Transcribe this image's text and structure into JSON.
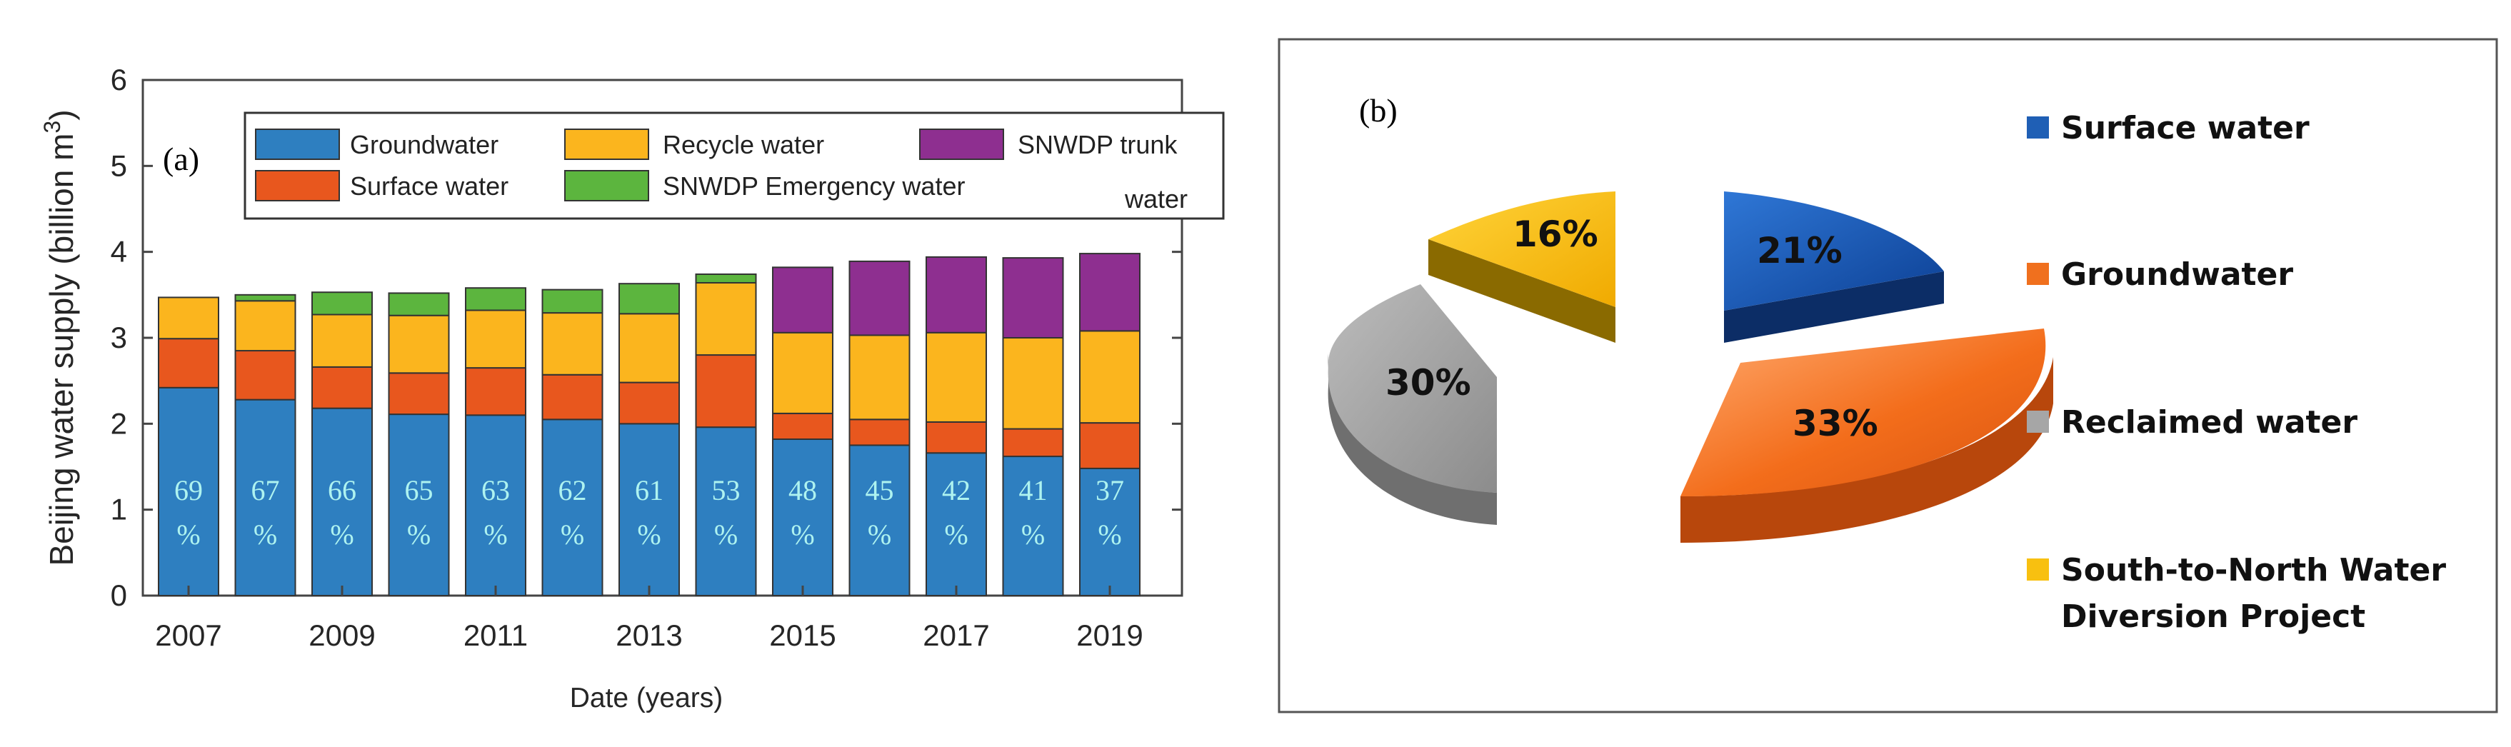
{
  "chart_data": [
    {
      "type": "bar",
      "panel_label": "(a)",
      "stacked": true,
      "title": "",
      "xlabel": "Date (years)",
      "ylabel": "Beijing water supply (billion m",
      "ylabel_sup": "3",
      "ylabel_close": ")",
      "ylim": [
        0,
        6
      ],
      "yticks": [
        "0",
        "1",
        "2",
        "3",
        "4",
        "5",
        "6"
      ],
      "categories": [
        "2007",
        "2008",
        "2009",
        "2010",
        "2011",
        "2012",
        "2013",
        "2014",
        "2015",
        "2016",
        "2017",
        "2018",
        "2019"
      ],
      "xtick_labels": [
        "2007",
        "2009",
        "2011",
        "2013",
        "2015",
        "2017",
        "2019"
      ],
      "series": [
        {
          "name": "Groundwater",
          "color": "#2e7fc0",
          "values": [
            2.42,
            2.28,
            2.18,
            2.11,
            2.1,
            2.05,
            2.0,
            1.96,
            1.82,
            1.75,
            1.66,
            1.62,
            1.48
          ]
        },
        {
          "name": "Surface water",
          "color": "#e8571e",
          "values": [
            0.57,
            0.57,
            0.48,
            0.48,
            0.55,
            0.52,
            0.48,
            0.84,
            0.3,
            0.3,
            0.36,
            0.32,
            0.53
          ]
        },
        {
          "name": "Recycle water",
          "color": "#fbb51e",
          "values": [
            0.48,
            0.58,
            0.61,
            0.67,
            0.67,
            0.72,
            0.8,
            0.84,
            0.94,
            0.98,
            1.04,
            1.06,
            1.07
          ]
        },
        {
          "name": "SNWDP Emergency water",
          "color": "#5cb53e",
          "values": [
            0.0,
            0.07,
            0.26,
            0.26,
            0.26,
            0.27,
            0.35,
            0.1,
            0.0,
            0.0,
            0.0,
            0.0,
            0.0
          ]
        },
        {
          "name": "SNWDP trunk water",
          "color": "#8e2f90",
          "values": [
            0.0,
            0.0,
            0.0,
            0.0,
            0.0,
            0.0,
            0.0,
            0.0,
            0.76,
            0.86,
            0.88,
            0.93,
            0.9
          ]
        }
      ],
      "legend": {
        "placement": "top",
        "entries": [
          {
            "series": 0,
            "label": "Groundwater"
          },
          {
            "series": 2,
            "label": "Recycle water"
          },
          {
            "series": 4,
            "label_line1": "SNWDP trunk",
            "label_line2": "water"
          },
          {
            "series": 1,
            "label": "Surface water"
          },
          {
            "series": 3,
            "label": "SNWDP Emergency water"
          }
        ]
      },
      "bar_annotations": {
        "numbers": [
          "69",
          "67",
          "66",
          "65",
          "63",
          "62",
          "61",
          "53",
          "48",
          "45",
          "42",
          "41",
          "37"
        ],
        "symbol": "%",
        "color": "#aef3f0"
      }
    },
    {
      "type": "pie",
      "panel_label": "(b)",
      "title": "",
      "slices": [
        {
          "label": "Surface water",
          "value": 21,
          "display": "21%",
          "color": "#1f5fb5"
        },
        {
          "label": "Groundwater",
          "value": 33,
          "display": "33%",
          "color": "#f0701e"
        },
        {
          "label": "Reclaimed water",
          "value": 30,
          "display": "30%",
          "color": "#a6a6a6"
        },
        {
          "label_line1": "South-to-North Water",
          "label_line2": "Diversion Project",
          "value": 16,
          "display": "16%",
          "color": "#f8c010"
        }
      ],
      "legend": {
        "placement": "right"
      }
    }
  ]
}
